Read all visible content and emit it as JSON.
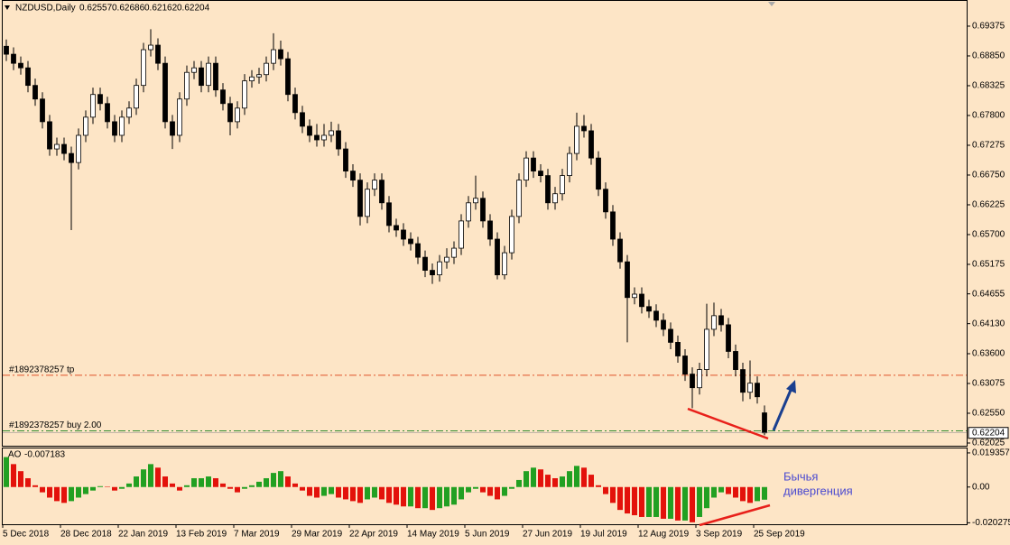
{
  "chart_data": {
    "type": "candlestick",
    "title": "NZDUSD,Daily",
    "open": [
      0.6902,
      0.6888,
      0.6872,
      0.6864,
      0.6833,
      0.6809,
      0.6769,
      0.6721,
      0.6729,
      0.6713,
      0.6697,
      0.6745,
      0.6777,
      0.6817,
      0.6801,
      0.6769,
      0.6745,
      0.6777,
      0.6793,
      0.6833,
      0.6896,
      0.6904,
      0.6872,
      0.6769,
      0.6745,
      0.6809,
      0.6856,
      0.6864,
      0.6833,
      0.6872,
      0.6825,
      0.6801,
      0.6769,
      0.6793,
      0.6841,
      0.6848,
      0.6852,
      0.6872,
      0.6896,
      0.688,
      0.6817,
      0.6785,
      0.6761,
      0.6745,
      0.6737,
      0.6745,
      0.6753,
      0.6721,
      0.6682,
      0.6666,
      0.6602,
      0.665,
      0.6666,
      0.6626,
      0.6586,
      0.6578,
      0.6562,
      0.6554,
      0.653,
      0.6507,
      0.6499,
      0.6522,
      0.653,
      0.6546,
      0.6594,
      0.6626,
      0.6634,
      0.6594,
      0.6562,
      0.6499,
      0.6538,
      0.6602,
      0.6666,
      0.6705,
      0.6682,
      0.6674,
      0.6626,
      0.6642,
      0.6674,
      0.6713,
      0.6761,
      0.6753,
      0.6705,
      0.665,
      0.661,
      0.6562,
      0.6522,
      0.6459,
      0.6465,
      0.6443,
      0.6435,
      0.6419,
      0.6403,
      0.638,
      0.6356,
      0.6324,
      0.63,
      0.6332,
      0.6403,
      0.6427,
      0.6411,
      0.6364,
      0.6332,
      0.6292,
      0.6308,
      0.62557
    ],
    "high": [
      0.6914,
      0.69,
      0.6884,
      0.6876,
      0.6845,
      0.6821,
      0.6781,
      0.6741,
      0.6741,
      0.6725,
      0.6757,
      0.6789,
      0.6829,
      0.6829,
      0.6813,
      0.6781,
      0.6789,
      0.6805,
      0.6845,
      0.6908,
      0.6932,
      0.6916,
      0.6884,
      0.6781,
      0.6821,
      0.6868,
      0.6876,
      0.6876,
      0.6884,
      0.6884,
      0.6837,
      0.6813,
      0.6805,
      0.6853,
      0.686,
      0.6864,
      0.6884,
      0.6925,
      0.6912,
      0.6892,
      0.6829,
      0.6797,
      0.6773,
      0.6765,
      0.6765,
      0.6769,
      0.6765,
      0.6733,
      0.6694,
      0.6678,
      0.6662,
      0.6678,
      0.6678,
      0.6638,
      0.6598,
      0.659,
      0.6574,
      0.6566,
      0.6542,
      0.6519,
      0.6534,
      0.6546,
      0.6558,
      0.6606,
      0.6638,
      0.6674,
      0.6646,
      0.6606,
      0.6574,
      0.655,
      0.6614,
      0.6678,
      0.6717,
      0.6717,
      0.6694,
      0.6686,
      0.6654,
      0.6686,
      0.6725,
      0.6785,
      0.6781,
      0.6765,
      0.6717,
      0.6662,
      0.6622,
      0.6574,
      0.6534,
      0.6477,
      0.6477,
      0.6455,
      0.6447,
      0.6431,
      0.6415,
      0.6392,
      0.6368,
      0.6336,
      0.6344,
      0.6448,
      0.645,
      0.6439,
      0.6423,
      0.6376,
      0.6344,
      0.6348,
      0.632,
      0.62686
    ],
    "low": [
      0.6876,
      0.686,
      0.6852,
      0.6821,
      0.6797,
      0.6757,
      0.6709,
      0.6709,
      0.6701,
      0.6578,
      0.6685,
      0.6733,
      0.6765,
      0.6789,
      0.6757,
      0.6733,
      0.6733,
      0.6765,
      0.6781,
      0.6821,
      0.6884,
      0.686,
      0.6757,
      0.6721,
      0.6733,
      0.6797,
      0.6844,
      0.6821,
      0.6821,
      0.6813,
      0.6789,
      0.6745,
      0.6757,
      0.6781,
      0.6829,
      0.6836,
      0.684,
      0.686,
      0.6868,
      0.6805,
      0.6773,
      0.6749,
      0.6733,
      0.6725,
      0.6725,
      0.6733,
      0.6709,
      0.667,
      0.6654,
      0.6586,
      0.659,
      0.6638,
      0.6614,
      0.6574,
      0.6566,
      0.655,
      0.6542,
      0.6518,
      0.6495,
      0.6483,
      0.6487,
      0.651,
      0.6518,
      0.6534,
      0.6582,
      0.6614,
      0.6582,
      0.655,
      0.6491,
      0.6491,
      0.6526,
      0.659,
      0.6654,
      0.667,
      0.6662,
      0.6614,
      0.6614,
      0.663,
      0.6662,
      0.6701,
      0.6741,
      0.6693,
      0.6638,
      0.6598,
      0.655,
      0.651,
      0.638,
      0.6447,
      0.6431,
      0.6423,
      0.6407,
      0.6391,
      0.6368,
      0.6344,
      0.6312,
      0.6264,
      0.6288,
      0.632,
      0.6391,
      0.6399,
      0.6352,
      0.632,
      0.6276,
      0.628,
      0.6272,
      0.62162
    ],
    "close": [
      0.6888,
      0.6872,
      0.6864,
      0.6833,
      0.6809,
      0.6769,
      0.6721,
      0.6729,
      0.6713,
      0.6697,
      0.6745,
      0.6777,
      0.6817,
      0.6801,
      0.6769,
      0.6745,
      0.6777,
      0.6793,
      0.6833,
      0.6896,
      0.6904,
      0.6872,
      0.6769,
      0.6745,
      0.6809,
      0.6856,
      0.6864,
      0.6833,
      0.6872,
      0.6825,
      0.6801,
      0.6769,
      0.6793,
      0.6841,
      0.6848,
      0.6852,
      0.6872,
      0.6896,
      0.688,
      0.6817,
      0.6785,
      0.6761,
      0.6745,
      0.6737,
      0.6745,
      0.6753,
      0.6721,
      0.6682,
      0.6666,
      0.6602,
      0.665,
      0.6666,
      0.6626,
      0.6586,
      0.6578,
      0.6562,
      0.6554,
      0.653,
      0.6507,
      0.6499,
      0.6522,
      0.653,
      0.6546,
      0.6594,
      0.6626,
      0.6634,
      0.6594,
      0.6562,
      0.6499,
      0.6538,
      0.6602,
      0.6666,
      0.6705,
      0.6682,
      0.6674,
      0.6626,
      0.6642,
      0.6674,
      0.6713,
      0.6761,
      0.6753,
      0.6705,
      0.665,
      0.661,
      0.6562,
      0.6522,
      0.6459,
      0.6465,
      0.6443,
      0.6435,
      0.6419,
      0.6403,
      0.638,
      0.6356,
      0.6324,
      0.63,
      0.6332,
      0.6403,
      0.6427,
      0.6411,
      0.6364,
      0.6332,
      0.6292,
      0.6308,
      0.6284,
      0.62204
    ],
    "xticks": [
      {
        "value": 0,
        "label": "5 Dec 2018"
      },
      {
        "value": 8,
        "label": "28 Dec 2018"
      },
      {
        "value": 16,
        "label": "22 Jan 2019"
      },
      {
        "value": 24,
        "label": "13 Feb 2019"
      },
      {
        "value": 32,
        "label": "7 Mar 2019"
      },
      {
        "value": 40,
        "label": "29 Mar 2019"
      },
      {
        "value": 48,
        "label": "22 Apr 2019"
      },
      {
        "value": 56,
        "label": "14 May 2019"
      },
      {
        "value": 64,
        "label": "5 Jun 2019"
      },
      {
        "value": 72,
        "label": "27 Jun 2019"
      },
      {
        "value": 80,
        "label": "19 Jul 2019"
      },
      {
        "value": 88,
        "label": "12 Aug 2019"
      },
      {
        "value": 96,
        "label": "3 Sep 2019"
      },
      {
        "value": 104,
        "label": "25 Sep 2019"
      }
    ],
    "ylim": [
      0.61977,
      0.69836
    ],
    "yticks": [
      0.69375,
      {
        "value": 0.6885,
        "label": "0.68850"
      },
      0.68325,
      {
        "value": 0.678,
        "label": "0.67800"
      },
      0.67275,
      {
        "value": 0.6675,
        "label": "0.66750"
      },
      0.66225,
      {
        "value": 0.657,
        "label": "0.65700"
      },
      0.65175,
      0.64655,
      {
        "value": 0.6413,
        "label": "0.64130"
      },
      {
        "value": 0.636,
        "label": "0.63600"
      },
      0.63075,
      {
        "value": 0.6255,
        "label": "0.62550"
      },
      0.62025
    ],
    "orders": [
      {
        "label": "#1892378257 tp",
        "price": 0.6322,
        "color": "#e0522a"
      },
      {
        "label": "#1892378257 buy 2.00",
        "price": 0.6224,
        "color": "#2e8b2e"
      }
    ],
    "annotation": [
      "Бычья",
      "дивергенция"
    ],
    "indicator": {
      "type": "bar",
      "name": "AO",
      "up_color": "#22a022",
      "down_color": "#e3120b",
      "ylim": [
        -0.0206,
        0.0224
      ],
      "yticks": [
        0.019357,
        {
          "value": 0,
          "label": "0.00"
        },
        -0.020275
      ],
      "values": [
        0.017,
        0.013,
        0.009,
        0.005,
        0.001,
        -0.003,
        -0.006,
        -0.008,
        -0.009,
        -0.008,
        -0.006,
        -0.004,
        -0.002,
        0.0005,
        0.0002,
        -0.002,
        -0.001,
        0.002,
        0.006,
        0.01,
        0.013,
        0.011,
        0.006,
        0.002,
        -0.002,
        0.001,
        0.005,
        0.005,
        0.006,
        0.005,
        0.002,
        -0.001,
        -0.003,
        -0.001,
        0.001,
        0.003,
        0.005,
        0.008,
        0.009,
        0.006,
        0.002,
        -0.002,
        -0.005,
        -0.006,
        -0.005,
        -0.004,
        -0.006,
        -0.007,
        -0.008,
        -0.009,
        -0.007,
        -0.006,
        -0.007,
        -0.009,
        -0.01,
        -0.011,
        -0.011,
        -0.012,
        -0.012,
        -0.013,
        -0.012,
        -0.011,
        -0.01,
        -0.007,
        -0.003,
        -0.001,
        -0.003,
        -0.005,
        -0.007,
        -0.005,
        -0.001,
        0.004,
        0.009,
        0.011,
        0.01,
        0.007,
        0.005,
        0.006,
        0.009,
        0.012,
        0.011,
        0.007,
        0.001,
        -0.004,
        -0.009,
        -0.013,
        -0.015,
        -0.016,
        -0.017,
        -0.017,
        -0.017,
        -0.018,
        -0.018,
        -0.019,
        -0.019,
        -0.02,
        -0.017,
        -0.012,
        -0.006,
        -0.003,
        -0.004,
        -0.006,
        -0.008,
        -0.009,
        -0.008,
        -0.007183
      ]
    }
  }
}
